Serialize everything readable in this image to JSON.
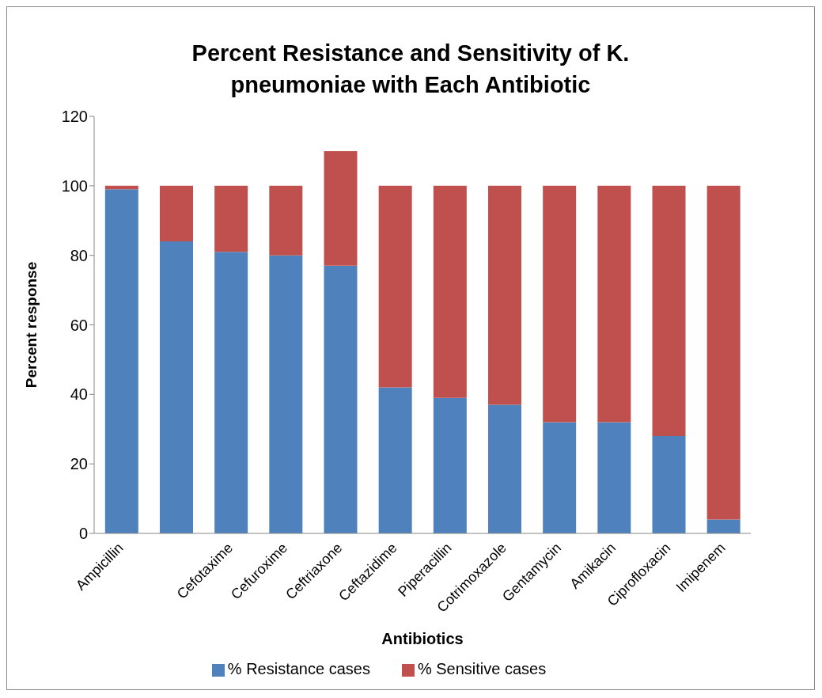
{
  "chart_data": {
    "type": "bar",
    "title": "Percent Resistance and Sensitivity of K. pneumoniae with Each Antibiotic",
    "xlabel": "Antibiotics",
    "ylabel": "Percent response",
    "categories": [
      "Ampicillin",
      null,
      "Cefotaxime",
      "Cefuroxime",
      "Ceftriaxone",
      "Ceftazidime",
      "Piperacillin",
      "Cotrimoxazole",
      "Gentamycin",
      "Amikacin",
      "Ciprofloxacin",
      "Imipenem"
    ],
    "stacked": true,
    "series": [
      {
        "name": "% Resistance cases",
        "color": "#4f81bd",
        "values": [
          99,
          84,
          81,
          80,
          77,
          42,
          39,
          37,
          32,
          32,
          28,
          4
        ]
      },
      {
        "name": "% Sensitive cases",
        "color": "#c0504d",
        "values": [
          1,
          16,
          19,
          20,
          33,
          58,
          61,
          63,
          68,
          68,
          72,
          96
        ]
      }
    ],
    "ylim": [
      0,
      120
    ],
    "yticks": [
      0,
      20,
      40,
      60,
      80,
      100,
      120
    ],
    "grid": false,
    "legend": "bottom"
  }
}
